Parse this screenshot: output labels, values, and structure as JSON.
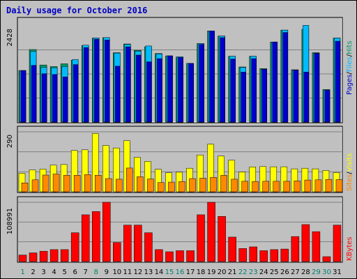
{
  "title": "Daily usage for October 2016",
  "chart_data": [
    {
      "type": "bar",
      "name": "hits-files-pages",
      "categories": [
        "1",
        "2",
        "3",
        "4",
        "5",
        "6",
        "7",
        "8",
        "9",
        "10",
        "11",
        "12",
        "13",
        "14",
        "15",
        "16",
        "17",
        "18",
        "19",
        "20",
        "21",
        "22",
        "23",
        "24",
        "25",
        "26",
        "27",
        "28",
        "29",
        "30",
        "31"
      ],
      "weekend_days": [
        "1",
        "8",
        "15",
        "16",
        "22",
        "23",
        "29",
        "30"
      ],
      "ymax_label": "2428",
      "ymax": 2428,
      "right_label": {
        "parts": [
          "Pages",
          "/",
          "Files",
          "/",
          "Hits"
        ]
      },
      "series": [
        {
          "name": "Hits",
          "color": "#009966",
          "values": [
            1300,
            1830,
            1440,
            1400,
            1470,
            1560,
            1930,
            2120,
            2130,
            1750,
            1970,
            1810,
            1900,
            1730,
            1670,
            1640,
            1480,
            1980,
            2300,
            2170,
            1660,
            1390,
            1660,
            1350,
            2020,
            2320,
            1320,
            2340,
            1750,
            820,
            2120
          ]
        },
        {
          "name": "Files",
          "color": "#00bbff",
          "values": [
            1300,
            1780,
            1380,
            1370,
            1400,
            1580,
            1940,
            2120,
            2130,
            1740,
            1960,
            1790,
            1920,
            1720,
            1670,
            1650,
            1480,
            1980,
            2300,
            2170,
            1660,
            1380,
            1660,
            1330,
            2020,
            2320,
            1310,
            2440,
            1740,
            810,
            2120
          ]
        },
        {
          "name": "Pages",
          "color": "#0000cc",
          "values": [
            1300,
            1430,
            1220,
            1200,
            1140,
            1450,
            1880,
            2090,
            2070,
            1410,
            1900,
            1690,
            1520,
            1600,
            1670,
            1630,
            1480,
            1960,
            2300,
            2130,
            1590,
            1260,
            1600,
            1330,
            2020,
            2260,
            1310,
            1260,
            1730,
            800,
            2040
          ]
        }
      ]
    },
    {
      "type": "bar",
      "name": "visits-sites",
      "categories": [
        "1",
        "2",
        "3",
        "4",
        "5",
        "6",
        "7",
        "8",
        "9",
        "10",
        "11",
        "12",
        "13",
        "14",
        "15",
        "16",
        "17",
        "18",
        "19",
        "20",
        "21",
        "22",
        "23",
        "24",
        "25",
        "26",
        "27",
        "28",
        "29",
        "30",
        "31"
      ],
      "ymax_label": "290",
      "ymax": 290,
      "right_label": {
        "parts": [
          "Sites",
          "/",
          "Visits"
        ]
      },
      "series": [
        {
          "name": "Visits",
          "color": "#ffff00",
          "values": [
            90,
            106,
            110,
            129,
            132,
            200,
            203,
            282,
            224,
            212,
            247,
            167,
            147,
            109,
            92,
            95,
            114,
            178,
            230,
            173,
            153,
            96,
            120,
            122,
            121,
            121,
            111,
            114,
            111,
            103,
            93
          ]
        },
        {
          "name": "Sites",
          "color": "#ff8800",
          "values": [
            43,
            58,
            81,
            86,
            80,
            80,
            83,
            80,
            64,
            61,
            115,
            73,
            62,
            45,
            47,
            50,
            64,
            66,
            70,
            80,
            61,
            51,
            50,
            51,
            51,
            51,
            53,
            57,
            58,
            60,
            59
          ]
        }
      ]
    },
    {
      "type": "bar",
      "name": "kbytes",
      "categories": [
        "1",
        "2",
        "3",
        "4",
        "5",
        "6",
        "7",
        "8",
        "9",
        "10",
        "11",
        "12",
        "13",
        "14",
        "15",
        "16",
        "17",
        "18",
        "19",
        "20",
        "21",
        "22",
        "23",
        "24",
        "25",
        "26",
        "27",
        "28",
        "29",
        "30",
        "31"
      ],
      "ymax_label": "108991",
      "ymax": 108991,
      "right_label": {
        "parts": [
          "KBytes"
        ]
      },
      "series": [
        {
          "name": "KBytes",
          "color": "#ff0000",
          "values": [
            12000,
            16000,
            19000,
            22000,
            22000,
            53000,
            86000,
            92000,
            108991,
            35000,
            67000,
            67000,
            53000,
            22000,
            18000,
            20000,
            20000,
            86000,
            108991,
            83000,
            45000,
            24000,
            27000,
            20000,
            22000,
            23000,
            46000,
            68000,
            55000,
            9000,
            67000
          ]
        }
      ]
    }
  ],
  "colors": {
    "background": "#c0c0c0",
    "plot_background": "#c0c0c0",
    "title": "#0000c0",
    "weekday_label": "#000000",
    "weekend_label": "#00806f",
    "grid": "#808080"
  }
}
